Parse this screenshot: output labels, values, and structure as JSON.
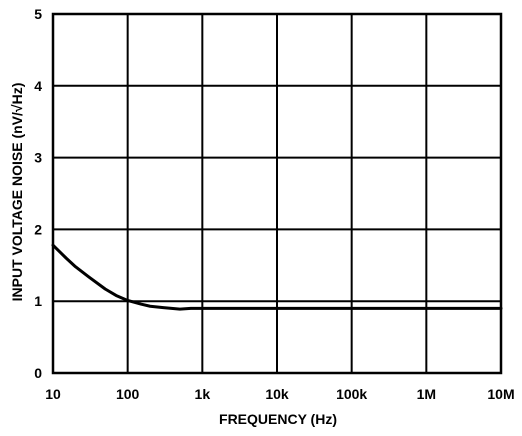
{
  "chart_data": {
    "type": "line",
    "xlabel": "FREQUENCY (Hz)",
    "ylabel": "INPUT VOLTAGE NOISE (nV/√Hz)",
    "x_scale": "log",
    "xlim": [
      10,
      10000000
    ],
    "ylim": [
      0,
      5
    ],
    "grid": true,
    "x_ticks": [
      {
        "value": 10,
        "label": "10"
      },
      {
        "value": 100,
        "label": "100"
      },
      {
        "value": 1000,
        "label": "1k"
      },
      {
        "value": 10000,
        "label": "10k"
      },
      {
        "value": 100000,
        "label": "100k"
      },
      {
        "value": 1000000,
        "label": "1M"
      },
      {
        "value": 10000000,
        "label": "10M"
      }
    ],
    "y_ticks": [
      {
        "value": 0,
        "label": "0"
      },
      {
        "value": 1,
        "label": "1"
      },
      {
        "value": 2,
        "label": "2"
      },
      {
        "value": 3,
        "label": "3"
      },
      {
        "value": 4,
        "label": "4"
      },
      {
        "value": 5,
        "label": "5"
      }
    ],
    "series": [
      {
        "color": "#000000",
        "x": [
          10,
          15,
          20,
          30,
          50,
          70,
          100,
          150,
          200,
          300,
          500,
          700,
          1000,
          10000,
          100000,
          1000000,
          10000000
        ],
        "y": [
          1.78,
          1.6,
          1.48,
          1.34,
          1.17,
          1.08,
          1.01,
          0.96,
          0.93,
          0.91,
          0.89,
          0.9,
          0.9,
          0.9,
          0.9,
          0.9,
          0.9
        ]
      }
    ]
  }
}
